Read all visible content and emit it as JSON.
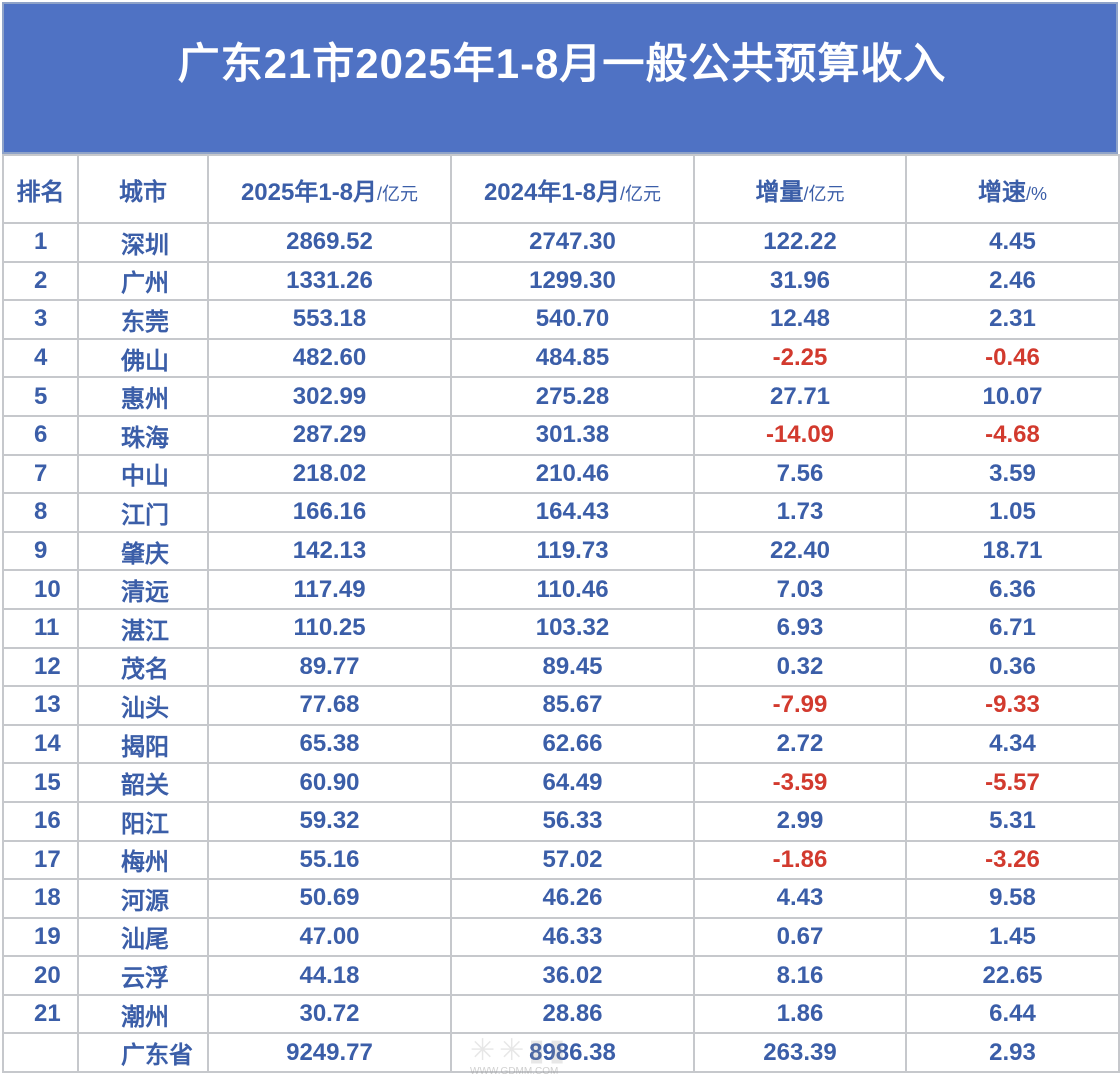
{
  "chart_data": {
    "type": "table",
    "title": "广东21市2025年1-8月一般公共预算收入",
    "columns": [
      {
        "label": "排名",
        "unit": ""
      },
      {
        "label": "城市",
        "unit": ""
      },
      {
        "label": "2025年1-8月",
        "unit": "/亿元"
      },
      {
        "label": "2024年1-8月",
        "unit": "/亿元"
      },
      {
        "label": "增量",
        "unit": "/亿元"
      },
      {
        "label": "增速",
        "unit": "/%"
      }
    ],
    "rows": [
      {
        "rank": "1",
        "city": "深圳",
        "v2025": "2869.52",
        "v2024": "2747.30",
        "delta": "122.22",
        "growth": "4.45"
      },
      {
        "rank": "2",
        "city": "广州",
        "v2025": "1331.26",
        "v2024": "1299.30",
        "delta": "31.96",
        "growth": "2.46"
      },
      {
        "rank": "3",
        "city": "东莞",
        "v2025": "553.18",
        "v2024": "540.70",
        "delta": "12.48",
        "growth": "2.31"
      },
      {
        "rank": "4",
        "city": "佛山",
        "v2025": "482.60",
        "v2024": "484.85",
        "delta": "-2.25",
        "growth": "-0.46"
      },
      {
        "rank": "5",
        "city": "惠州",
        "v2025": "302.99",
        "v2024": "275.28",
        "delta": "27.71",
        "growth": "10.07"
      },
      {
        "rank": "6",
        "city": "珠海",
        "v2025": "287.29",
        "v2024": "301.38",
        "delta": "-14.09",
        "growth": "-4.68"
      },
      {
        "rank": "7",
        "city": "中山",
        "v2025": "218.02",
        "v2024": "210.46",
        "delta": "7.56",
        "growth": "3.59"
      },
      {
        "rank": "8",
        "city": "江门",
        "v2025": "166.16",
        "v2024": "164.43",
        "delta": "1.73",
        "growth": "1.05"
      },
      {
        "rank": "9",
        "city": "肇庆",
        "v2025": "142.13",
        "v2024": "119.73",
        "delta": "22.40",
        "growth": "18.71"
      },
      {
        "rank": "10",
        "city": "清远",
        "v2025": "117.49",
        "v2024": "110.46",
        "delta": "7.03",
        "growth": "6.36"
      },
      {
        "rank": "11",
        "city": "湛江",
        "v2025": "110.25",
        "v2024": "103.32",
        "delta": "6.93",
        "growth": "6.71"
      },
      {
        "rank": "12",
        "city": "茂名",
        "v2025": "89.77",
        "v2024": "89.45",
        "delta": "0.32",
        "growth": "0.36"
      },
      {
        "rank": "13",
        "city": "汕头",
        "v2025": "77.68",
        "v2024": "85.67",
        "delta": "-7.99",
        "growth": "-9.33"
      },
      {
        "rank": "14",
        "city": "揭阳",
        "v2025": "65.38",
        "v2024": "62.66",
        "delta": "2.72",
        "growth": "4.34"
      },
      {
        "rank": "15",
        "city": "韶关",
        "v2025": "60.90",
        "v2024": "64.49",
        "delta": "-3.59",
        "growth": "-5.57"
      },
      {
        "rank": "16",
        "city": "阳江",
        "v2025": "59.32",
        "v2024": "56.33",
        "delta": "2.99",
        "growth": "5.31"
      },
      {
        "rank": "17",
        "city": "梅州",
        "v2025": "55.16",
        "v2024": "57.02",
        "delta": "-1.86",
        "growth": "-3.26"
      },
      {
        "rank": "18",
        "city": "河源",
        "v2025": "50.69",
        "v2024": "46.26",
        "delta": "4.43",
        "growth": "9.58"
      },
      {
        "rank": "19",
        "city": "汕尾",
        "v2025": "47.00",
        "v2024": "46.33",
        "delta": "0.67",
        "growth": "1.45"
      },
      {
        "rank": "20",
        "city": "云浮",
        "v2025": "44.18",
        "v2024": "36.02",
        "delta": "8.16",
        "growth": "22.65"
      },
      {
        "rank": "21",
        "city": "潮州",
        "v2025": "30.72",
        "v2024": "28.86",
        "delta": "1.86",
        "growth": "6.44"
      }
    ],
    "total": {
      "rank": "",
      "city": "广东省",
      "v2025": "9249.77",
      "v2024": "8986.38",
      "delta": "263.39",
      "growth": "2.93"
    }
  },
  "colors": {
    "title_bg": "#4f72c4",
    "title_text": "#ffffff",
    "cell_text": "#3b5ea8",
    "negative_text": "#d23a2e",
    "grid": "#c6c8cc"
  },
  "watermark": {
    "text": "WWW.GDMM.COM"
  }
}
